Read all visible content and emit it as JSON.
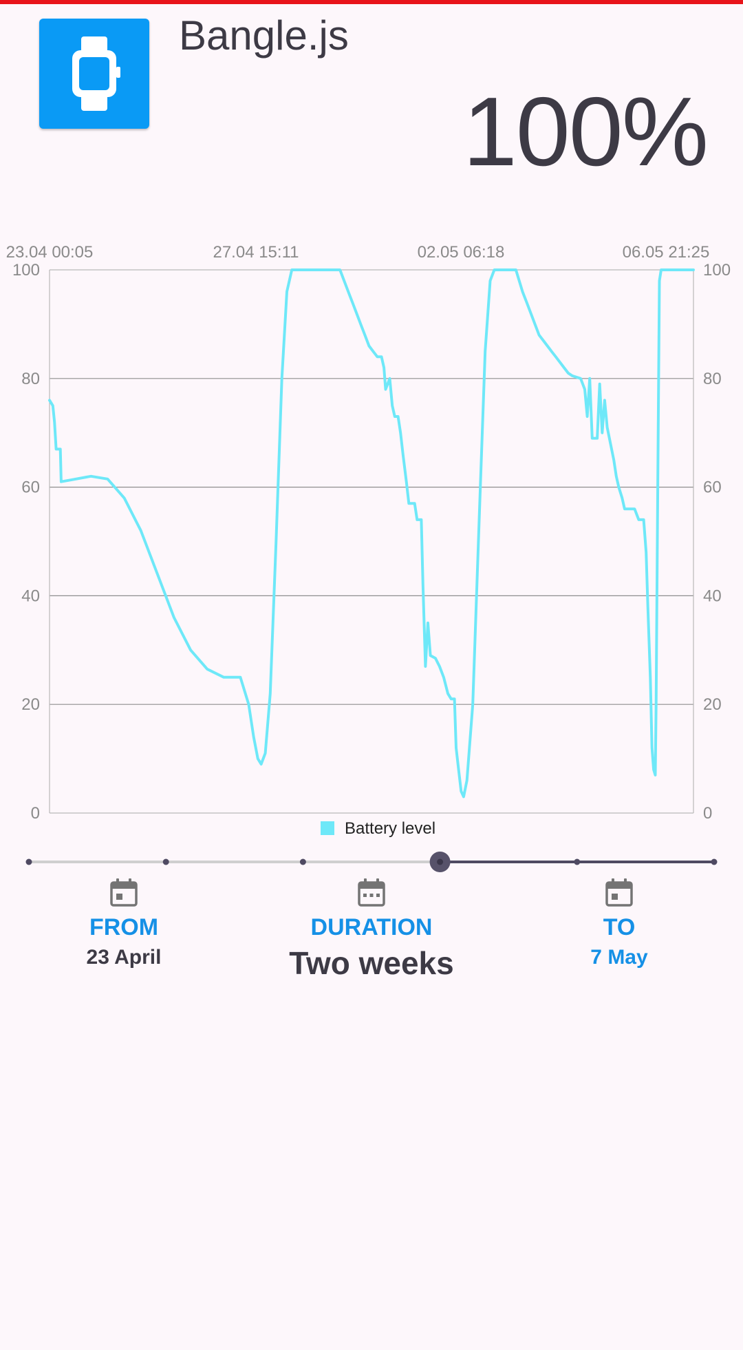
{
  "header": {
    "device_name": "Bangle.js",
    "battery_percent": "100%",
    "icon": "smartwatch-icon"
  },
  "chart_data": {
    "type": "line",
    "x_tick_labels": [
      "23.04 00:05",
      "27.04 15:11",
      "02.05 06:18",
      "06.05 21:25"
    ],
    "y_ticks": [
      0,
      20,
      40,
      60,
      80,
      100
    ],
    "ylim": [
      0,
      100
    ],
    "grid": true,
    "legend_position": "bottom-center",
    "series": [
      {
        "name": "Battery level",
        "color": "#6ee8f8",
        "points": [
          [
            0.0,
            76
          ],
          [
            0.4,
            75
          ],
          [
            0.6,
            72
          ],
          [
            0.8,
            67
          ],
          [
            1.3,
            67
          ],
          [
            1.4,
            61
          ],
          [
            2.5,
            61.3
          ],
          [
            5.0,
            62
          ],
          [
            7.0,
            61.5
          ],
          [
            9.0,
            58
          ],
          [
            11.0,
            52
          ],
          [
            13.0,
            44
          ],
          [
            15.0,
            36
          ],
          [
            17.0,
            30
          ],
          [
            19.0,
            26.5
          ],
          [
            21.0,
            25
          ],
          [
            23.0,
            25
          ],
          [
            24.0,
            20
          ],
          [
            24.6,
            14
          ],
          [
            25.1,
            10
          ],
          [
            25.5,
            9
          ],
          [
            26.0,
            11
          ],
          [
            26.6,
            22
          ],
          [
            27.3,
            50
          ],
          [
            28.0,
            80
          ],
          [
            28.6,
            96
          ],
          [
            29.2,
            100
          ],
          [
            35.0,
            100
          ],
          [
            35.5,
            98
          ],
          [
            36.0,
            96
          ],
          [
            36.5,
            94
          ],
          [
            37.0,
            92
          ],
          [
            37.5,
            90
          ],
          [
            38.0,
            88
          ],
          [
            38.5,
            86
          ],
          [
            39.0,
            85
          ],
          [
            39.5,
            84
          ],
          [
            40.0,
            84
          ],
          [
            40.3,
            82
          ],
          [
            40.5,
            78
          ],
          [
            41.0,
            80
          ],
          [
            41.3,
            75
          ],
          [
            41.6,
            73
          ],
          [
            42.0,
            73
          ],
          [
            42.3,
            70
          ],
          [
            42.6,
            66
          ],
          [
            43.0,
            61
          ],
          [
            43.3,
            57
          ],
          [
            44.0,
            57
          ],
          [
            44.3,
            54
          ],
          [
            44.8,
            54
          ],
          [
            45.0,
            42
          ],
          [
            45.3,
            27
          ],
          [
            45.6,
            35
          ],
          [
            45.9,
            29
          ],
          [
            46.5,
            28.5
          ],
          [
            47.0,
            27
          ],
          [
            47.5,
            25
          ],
          [
            48.0,
            22
          ],
          [
            48.4,
            21
          ],
          [
            48.8,
            21
          ],
          [
            49.0,
            12
          ],
          [
            49.3,
            8
          ],
          [
            49.6,
            4
          ],
          [
            49.9,
            3
          ],
          [
            50.3,
            6
          ],
          [
            51.0,
            20
          ],
          [
            51.8,
            55
          ],
          [
            52.5,
            85
          ],
          [
            53.1,
            98
          ],
          [
            53.6,
            100
          ],
          [
            56.2,
            100
          ],
          [
            56.6,
            98
          ],
          [
            57.0,
            96
          ],
          [
            57.5,
            94
          ],
          [
            58.0,
            92
          ],
          [
            58.5,
            90
          ],
          [
            59.0,
            88
          ],
          [
            59.5,
            87
          ],
          [
            60.0,
            86
          ],
          [
            60.5,
            85
          ],
          [
            61.0,
            84
          ],
          [
            61.5,
            83
          ],
          [
            62.0,
            82
          ],
          [
            62.5,
            81
          ],
          [
            63.0,
            80.5
          ],
          [
            64.0,
            80
          ],
          [
            64.5,
            78
          ],
          [
            64.8,
            73
          ],
          [
            65.1,
            80
          ],
          [
            65.4,
            69
          ],
          [
            66.0,
            69
          ],
          [
            66.3,
            79
          ],
          [
            66.6,
            70
          ],
          [
            66.9,
            76
          ],
          [
            67.2,
            71
          ],
          [
            67.6,
            68
          ],
          [
            68.0,
            65
          ],
          [
            68.3,
            62
          ],
          [
            68.6,
            60
          ],
          [
            69.0,
            58
          ],
          [
            69.3,
            56
          ],
          [
            70.0,
            56
          ],
          [
            70.5,
            56
          ],
          [
            71.0,
            54
          ],
          [
            71.6,
            54
          ],
          [
            71.9,
            48
          ],
          [
            72.1,
            38
          ],
          [
            72.4,
            25
          ],
          [
            72.6,
            12
          ],
          [
            72.8,
            8
          ],
          [
            73.0,
            7
          ],
          [
            73.1,
            20
          ],
          [
            73.3,
            60
          ],
          [
            73.5,
            98
          ],
          [
            73.7,
            100
          ],
          [
            77.6,
            100
          ]
        ]
      }
    ]
  },
  "legend": {
    "label": "Battery level"
  },
  "range_selector": {
    "stops": 6,
    "selected_index": 3
  },
  "dates": {
    "from_label": "FROM",
    "from_value": "23 April",
    "duration_label": "DURATION",
    "duration_value": "Two weeks",
    "to_label": "TO",
    "to_value": "7 May"
  },
  "colors": {
    "accent": "#1590e6",
    "line": "#6ee8f8",
    "text": "#3d3a45"
  }
}
